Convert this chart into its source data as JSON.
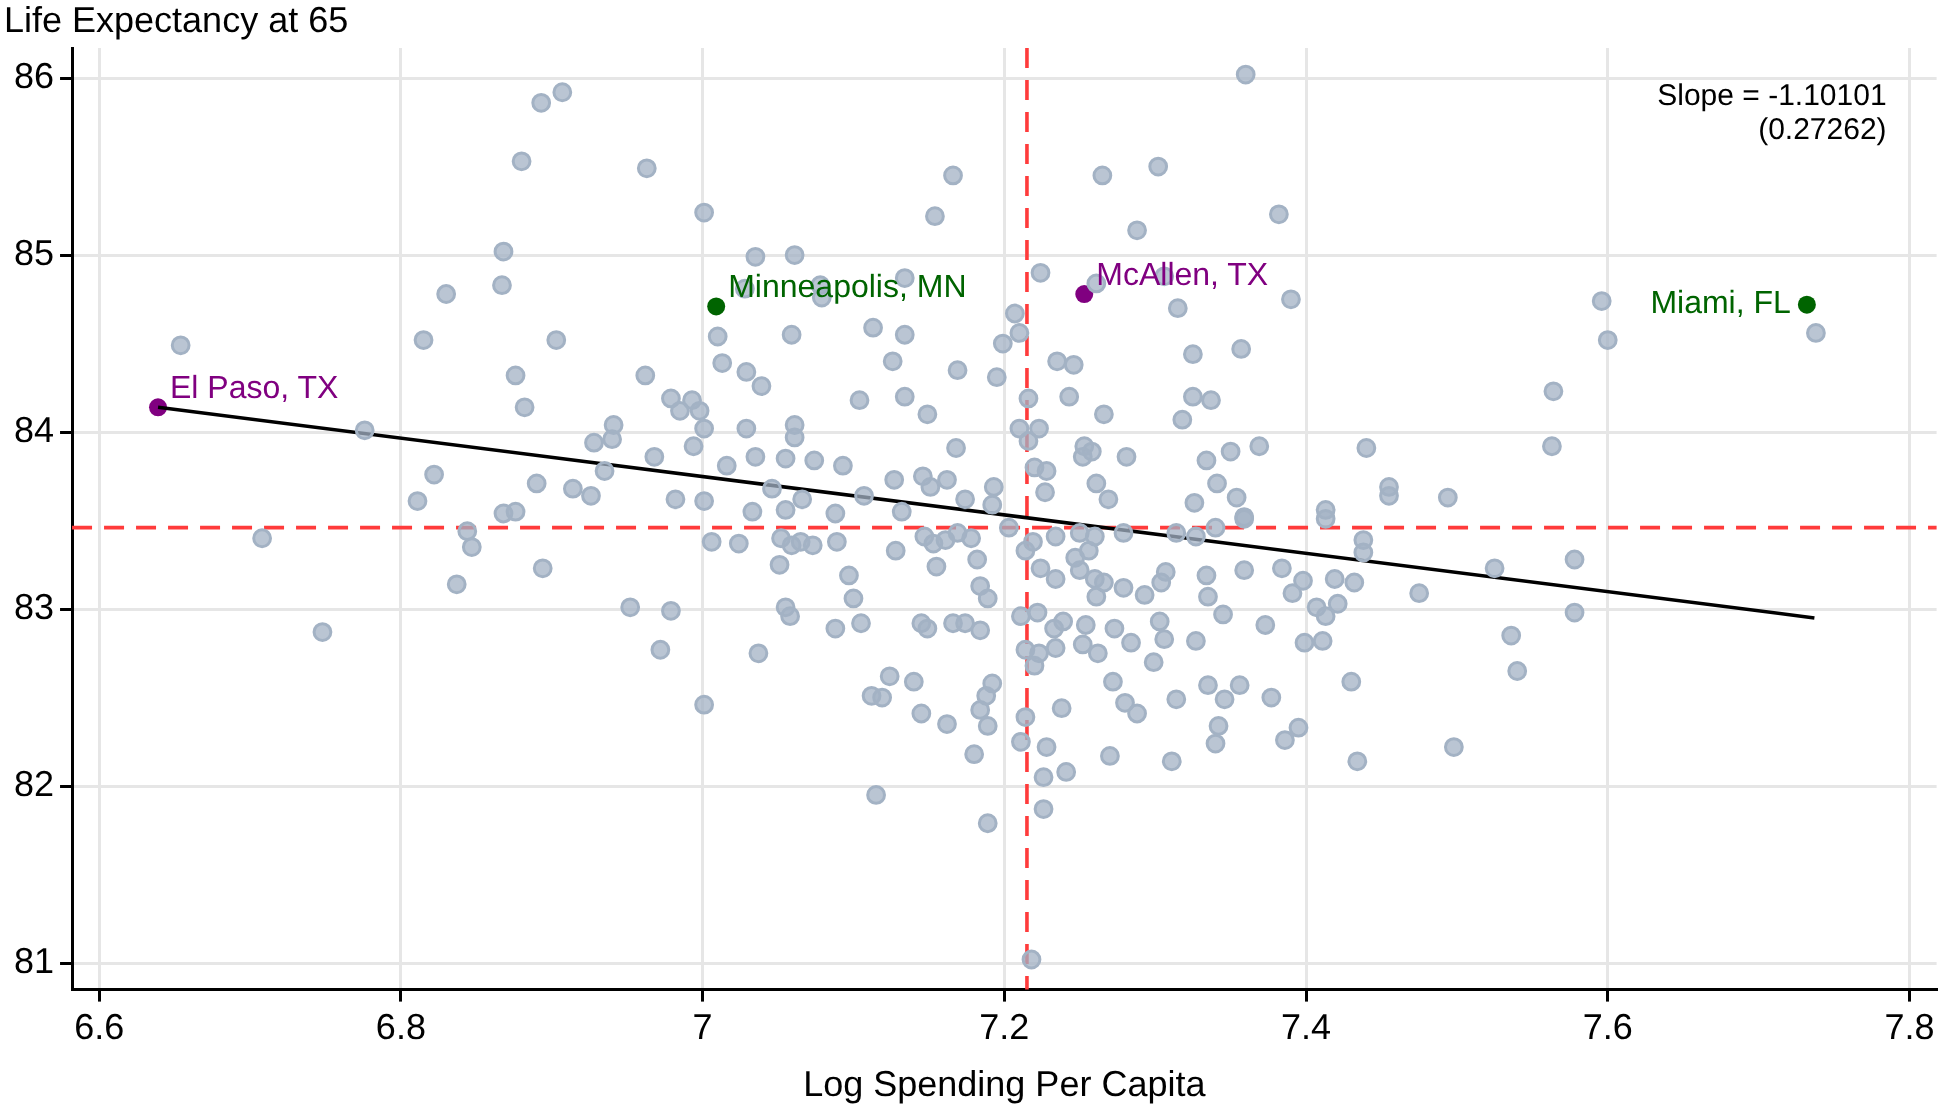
{
  "chart_data": {
    "type": "scatter",
    "xlabel": "Log Spending Per Capita",
    "ylabel": "Life Expectancy at 65",
    "xlim": [
      6.582,
      7.818
    ],
    "ylim": [
      80.85,
      86.17
    ],
    "xticks": [
      6.6,
      6.8,
      7,
      7.2,
      7.4,
      7.6,
      7.8
    ],
    "yticks": [
      81,
      82,
      83,
      84,
      85,
      86
    ],
    "grid": true,
    "marker": "circle",
    "legend": false,
    "annotations": [
      "Slope = -1.10101",
      "(0.27262)"
    ],
    "ref_lines": [
      {
        "axis": "x",
        "value": 7.215,
        "color": "#ff3b3b",
        "line_style": "dashed"
      },
      {
        "axis": "y",
        "value": 83.46,
        "color": "#ff3b3b",
        "line_style": "dashed"
      }
    ],
    "series": [
      {
        "color": "#a3b2c4",
        "x": [
          6.654,
          6.776,
          6.815,
          6.83,
          6.868,
          6.867,
          6.88,
          6.893,
          6.907,
          6.963,
          6.903,
          6.876,
          6.882,
          6.962,
          6.979,
          6.985,
          6.993,
          6.998,
          6.941,
          6.94,
          6.928,
          6.994,
          7.001,
          6.968,
          6.935,
          6.822,
          6.89,
          6.914,
          6.926,
          6.982,
          6.811,
          6.868,
          6.876,
          7.001,
          7.001,
          6.708,
          6.748,
          6.844,
          6.847,
          6.837,
          6.894,
          6.952,
          6.979,
          6.972,
          7.001,
          7.166,
          7.154,
          7.36,
          7.265,
          7.302,
          7.288,
          7.382,
          7.035,
          7.061,
          7.028,
          7.078,
          7.079,
          7.134,
          7.01,
          7.059,
          7.113,
          7.134,
          7.013,
          7.029,
          7.039,
          7.126,
          7.199,
          7.207,
          7.21,
          7.224,
          7.261,
          7.306,
          7.315,
          7.39,
          7.325,
          7.357,
          7.235,
          7.246,
          7.169,
          7.195,
          7.104,
          7.134,
          7.149,
          7.243,
          7.266,
          7.325,
          7.337,
          7.318,
          7.029,
          7.061,
          7.061,
          7.035,
          7.055,
          7.074,
          7.093,
          7.168,
          7.21,
          7.216,
          7.223,
          7.216,
          7.016,
          7.253,
          7.258,
          7.252,
          7.281,
          7.334,
          7.35,
          7.369,
          7.22,
          7.228,
          7.046,
          7.107,
          7.127,
          7.146,
          7.151,
          7.162,
          7.193,
          7.174,
          7.261,
          7.269,
          7.341,
          7.354,
          7.326,
          7.033,
          7.055,
          7.066,
          7.088,
          7.132,
          7.192,
          7.227,
          7.359,
          7.006,
          7.024,
          7.052,
          7.059,
          7.065,
          7.073,
          7.089,
          7.051,
          7.097,
          7.1,
          7.055,
          7.058,
          7.037,
          7.088,
          7.105,
          7.128,
          7.147,
          7.153,
          7.161,
          7.169,
          7.178,
          7.155,
          7.182,
          7.184,
          7.189,
          7.145,
          7.149,
          7.166,
          7.174,
          7.184,
          7.124,
          7.14,
          7.112,
          7.119,
          7.145,
          7.162,
          7.184,
          7.188,
          7.192,
          7.189,
          7.18,
          7.115,
          7.189,
          7.203,
          7.214,
          7.219,
          7.234,
          7.224,
          7.234,
          7.25,
          7.26,
          7.256,
          7.247,
          7.25,
          7.26,
          7.266,
          7.261,
          7.279,
          7.279,
          7.293,
          7.304,
          7.307,
          7.314,
          7.327,
          7.34,
          7.334,
          7.335,
          7.359,
          7.384,
          7.391,
          7.398,
          7.359,
          7.211,
          7.222,
          7.233,
          7.239,
          7.254,
          7.214,
          7.223,
          7.234,
          7.22,
          7.252,
          7.262,
          7.273,
          7.284,
          7.303,
          7.306,
          7.299,
          7.327,
          7.345,
          7.373,
          7.399,
          7.272,
          7.28,
          7.288,
          7.314,
          7.335,
          7.346,
          7.356,
          7.377,
          7.238,
          7.214,
          7.211,
          7.228,
          7.27,
          7.311,
          7.342,
          7.34,
          7.386,
          7.226,
          7.241,
          7.226,
          7.218,
          7.407,
          7.413,
          7.413,
          7.438,
          7.438,
          7.419,
          7.432,
          7.421,
          7.413,
          7.411,
          7.43,
          7.434,
          7.475,
          7.525,
          7.578,
          7.578,
          7.536,
          7.54,
          7.498,
          7.395,
          7.596,
          7.6,
          7.564,
          7.563,
          7.44,
          7.455,
          7.455,
          7.494,
          7.738
        ],
        "values": [
          84.49,
          84.01,
          84.52,
          84.78,
          85.02,
          84.83,
          85.53,
          85.86,
          85.92,
          85.49,
          84.52,
          84.32,
          84.14,
          84.32,
          84.19,
          84.12,
          84.18,
          84.12,
          84.04,
          83.96,
          83.94,
          83.92,
          84.02,
          83.86,
          83.78,
          83.76,
          83.71,
          83.68,
          83.64,
          83.62,
          83.61,
          83.54,
          83.55,
          85.24,
          83.61,
          83.4,
          82.87,
          83.44,
          83.35,
          83.14,
          83.23,
          83.01,
          82.99,
          82.77,
          82.46,
          85.45,
          85.22,
          86.02,
          85.45,
          85.5,
          85.14,
          85.23,
          84.99,
          85.0,
          84.81,
          84.83,
          84.76,
          84.87,
          84.54,
          84.55,
          84.59,
          84.55,
          84.39,
          84.34,
          84.26,
          84.4,
          84.5,
          84.67,
          84.56,
          84.9,
          84.84,
          84.88,
          84.7,
          84.75,
          84.44,
          84.47,
          84.4,
          84.38,
          84.35,
          84.31,
          84.18,
          84.2,
          84.1,
          84.2,
          84.1,
          84.2,
          84.18,
          84.07,
          84.02,
          84.04,
          83.97,
          83.86,
          83.85,
          83.84,
          83.81,
          83.91,
          84.02,
          83.95,
          84.02,
          84.19,
          83.81,
          83.92,
          83.89,
          83.86,
          83.86,
          83.84,
          83.89,
          83.92,
          83.8,
          83.78,
          83.68,
          83.64,
          83.73,
          83.75,
          83.69,
          83.73,
          83.69,
          83.62,
          83.71,
          83.62,
          83.71,
          83.63,
          83.6,
          83.55,
          83.56,
          83.62,
          83.54,
          83.55,
          83.59,
          83.66,
          83.52,
          83.38,
          83.37,
          83.4,
          83.36,
          83.38,
          83.36,
          83.38,
          83.25,
          83.19,
          83.06,
          83.01,
          82.96,
          82.75,
          82.89,
          82.92,
          83.33,
          83.41,
          83.37,
          83.39,
          83.43,
          83.4,
          83.24,
          83.28,
          83.13,
          83.06,
          82.92,
          82.89,
          82.92,
          82.92,
          82.88,
          82.62,
          82.59,
          82.51,
          82.5,
          82.41,
          82.35,
          82.43,
          82.51,
          82.58,
          82.34,
          82.18,
          81.95,
          81.79,
          83.46,
          83.33,
          83.38,
          83.41,
          83.23,
          83.17,
          83.43,
          83.41,
          83.33,
          83.29,
          83.22,
          83.17,
          83.15,
          83.07,
          83.12,
          83.43,
          83.08,
          83.15,
          83.21,
          83.43,
          83.41,
          83.46,
          83.19,
          83.07,
          83.22,
          83.23,
          83.09,
          83.16,
          83.51,
          82.96,
          82.98,
          82.89,
          82.93,
          82.91,
          82.77,
          82.75,
          82.78,
          82.68,
          82.8,
          82.75,
          82.89,
          82.81,
          82.93,
          82.83,
          82.7,
          82.82,
          82.97,
          82.91,
          82.81,
          82.59,
          82.47,
          82.41,
          82.49,
          82.57,
          82.49,
          82.57,
          82.5,
          82.44,
          82.39,
          82.25,
          82.22,
          82.17,
          82.14,
          82.34,
          82.24,
          82.26,
          82.05,
          82.08,
          81.87,
          81.02,
          83.01,
          83.56,
          83.51,
          83.39,
          83.32,
          83.17,
          83.15,
          83.03,
          82.96,
          82.82,
          82.59,
          82.14,
          83.09,
          83.23,
          83.28,
          82.98,
          82.85,
          82.65,
          82.22,
          82.33,
          84.74,
          84.52,
          84.23,
          83.92,
          83.91,
          83.69,
          83.64,
          83.63,
          84.56
        ]
      },
      {
        "type": "line",
        "color": "#000000",
        "x": [
          6.639,
          7.737
        ],
        "values": [
          84.14,
          82.95
        ],
        "marker": "none"
      },
      {
        "name": "El Paso, TX",
        "color": "#800080",
        "x": [
          6.639
        ],
        "values": [
          84.14
        ]
      },
      {
        "name": "Minneapolis, MN",
        "color": "#006400",
        "x": [
          7.009
        ],
        "values": [
          84.71
        ]
      },
      {
        "name": "McAllen, TX",
        "color": "#800080",
        "x": [
          7.253
        ],
        "values": [
          84.78
        ]
      },
      {
        "name": "Miami, FL",
        "color": "#006400",
        "x": [
          7.732
        ],
        "values": [
          84.72
        ]
      }
    ]
  }
}
